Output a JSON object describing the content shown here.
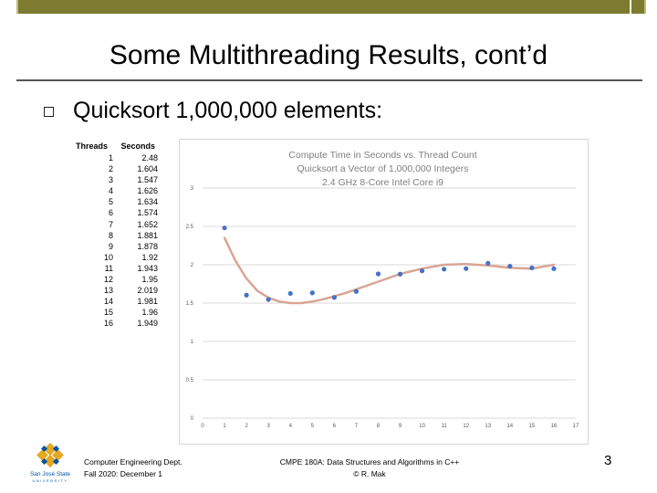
{
  "slide": {
    "title": "Some Multithreading Results, cont’d",
    "bullet": "Quicksort 1,000,000 elements:",
    "footer_left": [
      "Computer Engineering Dept.",
      "Fall 2020: December 1"
    ],
    "footer_mid": [
      "CMPE 180A: Data Structures and Algorithms in C++",
      "© R. Mak"
    ],
    "page_number": "3",
    "logo_text": [
      "San José State",
      "UNIVERSITY"
    ]
  },
  "table": {
    "headers": [
      "Threads",
      "Seconds"
    ],
    "rows": [
      [
        "1",
        "2.48"
      ],
      [
        "2",
        "1.604"
      ],
      [
        "3",
        "1.547"
      ],
      [
        "4",
        "1.626"
      ],
      [
        "5",
        "1.634"
      ],
      [
        "6",
        "1.574"
      ],
      [
        "7",
        "1.652"
      ],
      [
        "8",
        "1.881"
      ],
      [
        "9",
        "1.878"
      ],
      [
        "10",
        "1.92"
      ],
      [
        "11",
        "1.943"
      ],
      [
        "12",
        "1.95"
      ],
      [
        "13",
        "2.019"
      ],
      [
        "14",
        "1.981"
      ],
      [
        "15",
        "1.96"
      ],
      [
        "16",
        "1.949"
      ]
    ]
  },
  "chart_data": {
    "type": "scatter",
    "title": [
      "Compute Time in Seconds vs. Thread Count",
      "Quicksort  a Vector of 1,000,000 Integers",
      "2.4 GHz 8-Core Intel Core i9"
    ],
    "x": [
      1,
      2,
      3,
      4,
      5,
      6,
      7,
      8,
      9,
      10,
      11,
      12,
      13,
      14,
      15,
      16
    ],
    "y": [
      2.48,
      1.604,
      1.547,
      1.626,
      1.634,
      1.574,
      1.652,
      1.881,
      1.878,
      1.92,
      1.943,
      1.95,
      2.019,
      1.981,
      1.96,
      1.949
    ],
    "trendline": {
      "x": [
        1,
        1.5,
        2,
        2.5,
        3,
        3.5,
        4,
        4.5,
        5,
        5.5,
        6,
        6.5,
        7,
        8,
        9,
        10,
        11,
        12,
        13,
        14,
        15,
        16
      ],
      "y": [
        2.35,
        2.05,
        1.82,
        1.66,
        1.57,
        1.52,
        1.5,
        1.5,
        1.52,
        1.55,
        1.59,
        1.63,
        1.68,
        1.78,
        1.88,
        1.95,
        2.0,
        2.01,
        1.99,
        1.96,
        1.95,
        2.0
      ]
    },
    "xlim": [
      0,
      17
    ],
    "ylim": [
      0,
      3
    ],
    "xticks": [
      "0",
      "1",
      "2",
      "3",
      "4",
      "5",
      "6",
      "7",
      "8",
      "9",
      "10",
      "11",
      "12",
      "13",
      "14",
      "15",
      "16",
      "17"
    ],
    "yticks": [
      "0",
      "0.5",
      "1",
      "1.5",
      "2",
      "2.5",
      "3"
    ],
    "grid": true,
    "colors": {
      "points": "#4472c4",
      "trendline": "#d9a594",
      "grid": "#d9d9d9",
      "title": "#7f7f7f"
    }
  }
}
